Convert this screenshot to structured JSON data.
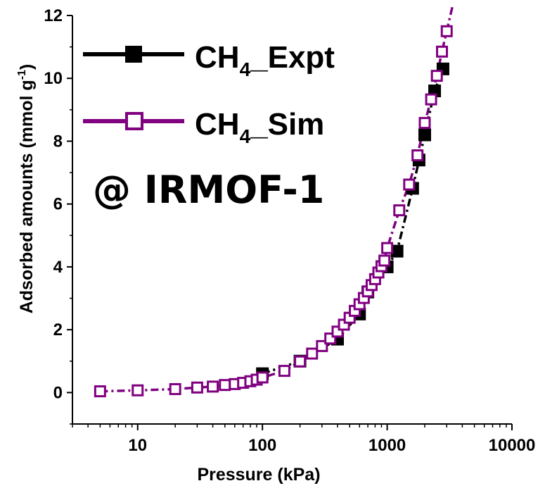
{
  "chart_data": {
    "type": "scatter",
    "x_scale": "log",
    "xlabel": "Pressure (kPa)",
    "ylabel": "Adsorbed amounts (mmol g-1)",
    "ylabel_parts": {
      "main": "Adsorbed amounts (mmol g",
      "sup": "-1",
      "close": ")"
    },
    "xlim": [
      3,
      10000
    ],
    "ylim": [
      -1,
      12
    ],
    "x_ticks": [
      10,
      100,
      1000,
      10000
    ],
    "x_tick_labels": [
      "10",
      "100",
      "1000",
      "10000"
    ],
    "y_ticks": [
      0,
      2,
      4,
      6,
      8,
      10,
      12
    ],
    "y_tick_labels": [
      "0",
      "2",
      "4",
      "6",
      "8",
      "10",
      "12"
    ],
    "annotation": "@ IRMOF-1",
    "legend_position": "top-left",
    "grid": false,
    "series": [
      {
        "name": "CH4_Expt",
        "label_parts": {
          "prefix": "CH",
          "sub": "4",
          "suffix": "_Expt"
        },
        "color": "#000000",
        "marker": "filled-square",
        "x": [
          100,
          200,
          400,
          600,
          700,
          1000,
          1200,
          1600,
          1800,
          2000,
          2400,
          2800
        ],
        "y": [
          0.6,
          1.0,
          1.7,
          2.5,
          3.2,
          4.0,
          4.5,
          6.5,
          7.4,
          8.2,
          9.6,
          10.3
        ]
      },
      {
        "name": "CH4_Sim",
        "label_parts": {
          "prefix": "CH",
          "sub": "4",
          "suffix": "_Sim"
        },
        "color": "#800080",
        "marker": "open-square",
        "x": [
          5,
          10,
          20,
          30,
          40,
          50,
          60,
          70,
          80,
          90,
          100,
          150,
          200,
          250,
          300,
          350,
          400,
          450,
          500,
          550,
          600,
          650,
          700,
          750,
          800,
          850,
          900,
          950,
          1000,
          1250,
          1500,
          1750,
          2000,
          2250,
          2500,
          2750,
          3000
        ],
        "y": [
          0.04,
          0.07,
          0.11,
          0.16,
          0.19,
          0.24,
          0.27,
          0.31,
          0.36,
          0.41,
          0.48,
          0.69,
          0.99,
          1.24,
          1.48,
          1.72,
          1.94,
          2.16,
          2.38,
          2.6,
          2.81,
          3.01,
          3.22,
          3.42,
          3.61,
          3.82,
          4.02,
          4.2,
          4.6,
          5.8,
          6.62,
          7.55,
          8.58,
          9.33,
          10.08,
          10.85,
          11.5
        ]
      }
    ]
  }
}
